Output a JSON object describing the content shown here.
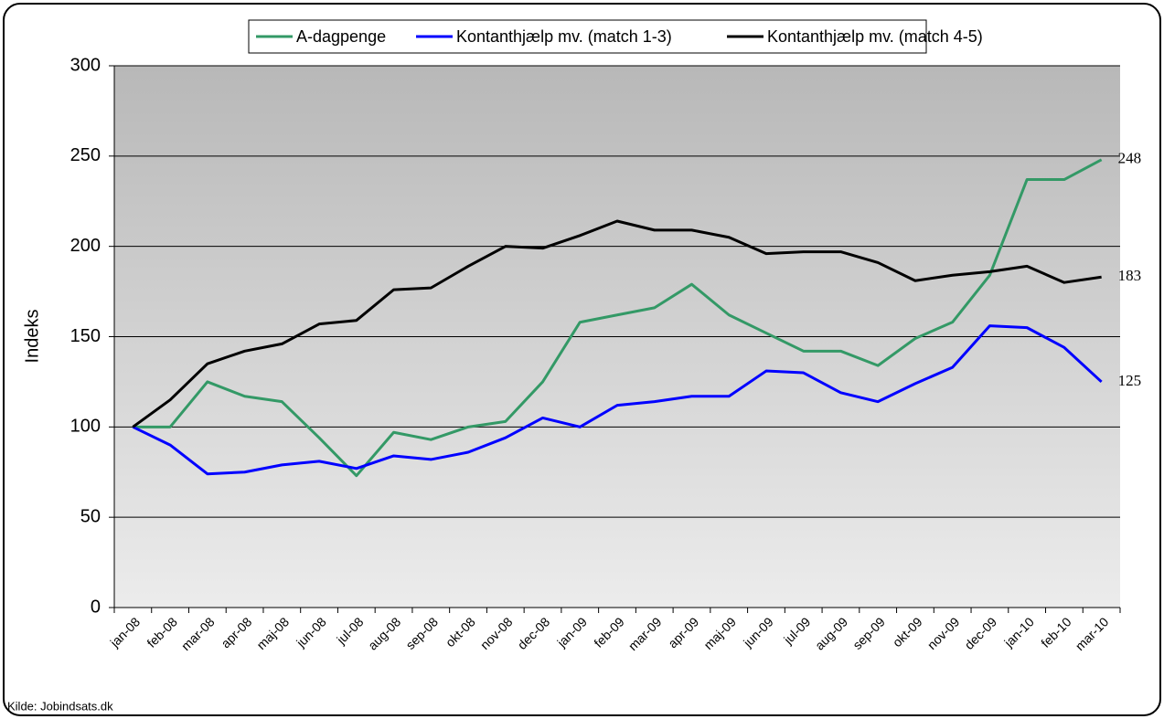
{
  "chart_data": {
    "type": "line",
    "y_label": "Indeks",
    "source": "Kilde: Jobindsats.dk",
    "categories": [
      "jan-08",
      "feb-08",
      "mar-08",
      "apr-08",
      "maj-08",
      "jun-08",
      "jul-08",
      "aug-08",
      "sep-08",
      "okt-08",
      "nov-08",
      "dec-08",
      "jan-09",
      "feb-09",
      "mar-09",
      "apr-09",
      "maj-09",
      "jun-09",
      "jul-09",
      "aug-09",
      "sep-09",
      "okt-09",
      "nov-09",
      "dec-09",
      "jan-10",
      "feb-10",
      "mar-10"
    ],
    "series": [
      {
        "name": "A-dagpenge",
        "color": "#339966",
        "values": [
          100,
          100,
          125,
          117,
          114,
          94,
          73,
          97,
          93,
          100,
          103,
          125,
          158,
          162,
          166,
          179,
          162,
          152,
          142,
          142,
          134,
          149,
          158,
          184,
          237,
          237,
          248
        ]
      },
      {
        "name": "Kontanthjælp mv. (match 1-3)",
        "color": "#0000ff",
        "values": [
          100,
          90,
          74,
          75,
          79,
          81,
          77,
          84,
          82,
          86,
          94,
          105,
          100,
          112,
          114,
          117,
          117,
          131,
          130,
          119,
          114,
          124,
          133,
          156,
          155,
          144,
          125
        ]
      },
      {
        "name": "Kontanthjælp mv. (match 4-5)",
        "color": "#000000",
        "values": [
          100,
          115,
          135,
          142,
          146,
          157,
          159,
          176,
          177,
          189,
          200,
          199,
          206,
          214,
          209,
          209,
          205,
          196,
          197,
          197,
          191,
          181,
          184,
          186,
          189,
          180,
          183
        ]
      }
    ],
    "ylim": [
      0,
      300
    ],
    "yticks": [
      0,
      50,
      100,
      150,
      200,
      250,
      300
    ],
    "grid": true,
    "legend": "top"
  }
}
